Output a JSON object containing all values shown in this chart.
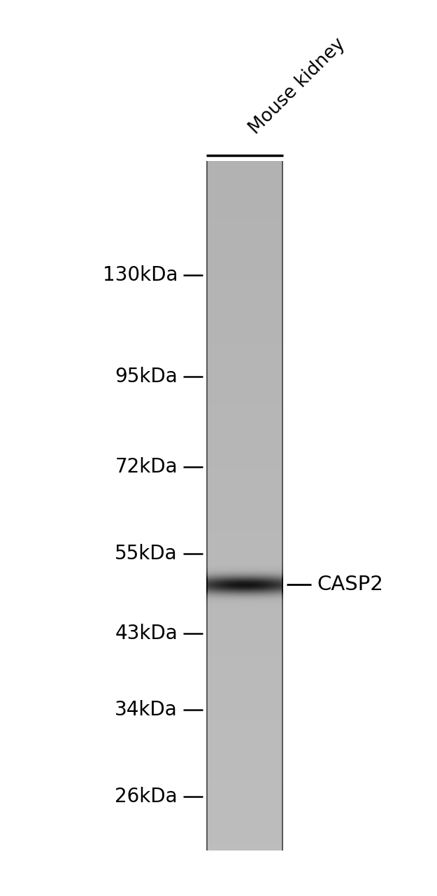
{
  "bg_color": "#ffffff",
  "lane_gray": 0.72,
  "lane_border_color": "#404040",
  "band_kda": 50,
  "marker_labels": [
    "130kDa",
    "95kDa",
    "72kDa",
    "55kDa",
    "43kDa",
    "34kDa",
    "26kDa"
  ],
  "marker_kdas": [
    130,
    95,
    72,
    55,
    43,
    34,
    26
  ],
  "kda_min": 22,
  "kda_max": 185,
  "lane_label": "Mouse kidney",
  "band_label": "CASP2",
  "font_size_markers": 20,
  "font_size_band_label": 21,
  "font_size_lane_label": 19
}
